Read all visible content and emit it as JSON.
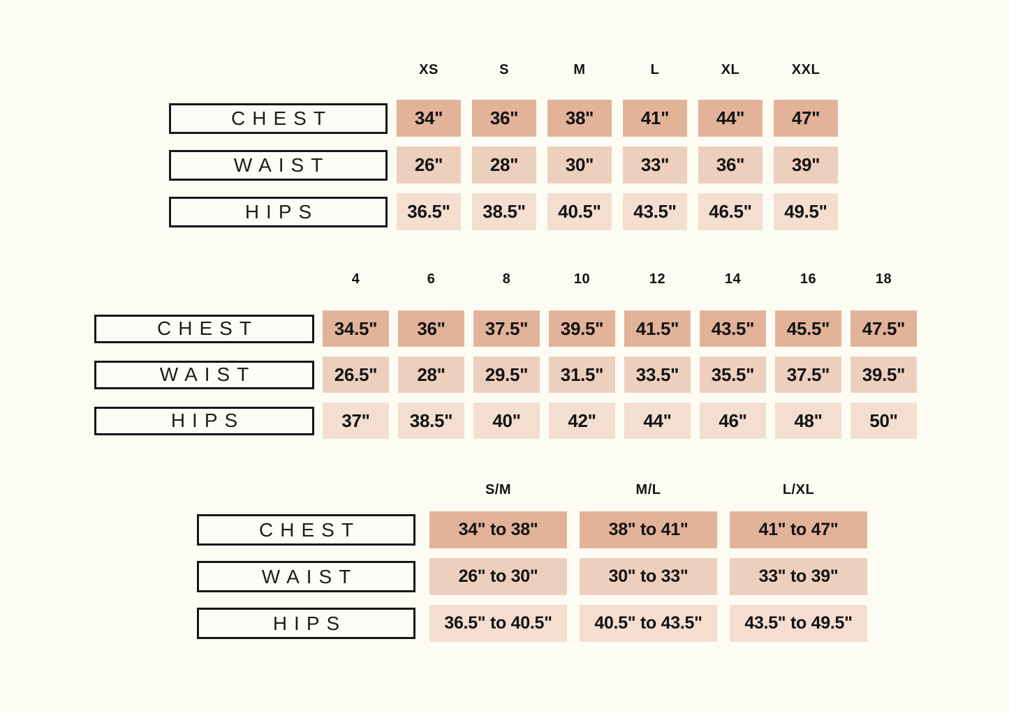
{
  "page": {
    "background": "#fcfcf3",
    "description": "Garment size chart with letter sizes, numeric sizes and combined sizes"
  },
  "colors": {
    "chest": "#e2b399",
    "waist": "#edcfbd",
    "hips": "#f3ded0",
    "label_box_bg": "#fdfdf8",
    "label_box_border": "#161616",
    "text": "#131313"
  },
  "chart_data": [
    {
      "type": "table",
      "name": "letter-sizes",
      "sizes": [
        "XS",
        "S",
        "M",
        "L",
        "XL",
        "XXL"
      ],
      "rows": [
        {
          "label": "CHEST",
          "values": [
            "34\"",
            "36\"",
            "38\"",
            "41\"",
            "44\"",
            "47\""
          ]
        },
        {
          "label": "WAIST",
          "values": [
            "26\"",
            "28\"",
            "30\"",
            "33\"",
            "36\"",
            "39\""
          ]
        },
        {
          "label": "HIPS",
          "values": [
            "36.5\"",
            "38.5\"",
            "40.5\"",
            "43.5\"",
            "46.5\"",
            "49.5\""
          ]
        }
      ]
    },
    {
      "type": "table",
      "name": "numeric-sizes",
      "sizes": [
        "4",
        "6",
        "8",
        "10",
        "12",
        "14",
        "16",
        "18"
      ],
      "rows": [
        {
          "label": "CHEST",
          "values": [
            "34.5\"",
            "36\"",
            "37.5\"",
            "39.5\"",
            "41.5\"",
            "43.5\"",
            "45.5\"",
            "47.5\""
          ]
        },
        {
          "label": "WAIST",
          "values": [
            "26.5\"",
            "28\"",
            "29.5\"",
            "31.5\"",
            "33.5\"",
            "35.5\"",
            "37.5\"",
            "39.5\""
          ]
        },
        {
          "label": "HIPS",
          "values": [
            "37\"",
            "38.5\"",
            "40\"",
            "42\"",
            "44\"",
            "46\"",
            "48\"",
            "50\""
          ]
        }
      ]
    },
    {
      "type": "table",
      "name": "combo-sizes",
      "sizes": [
        "S/M",
        "M/L",
        "L/XL"
      ],
      "rows": [
        {
          "label": "CHEST",
          "values": [
            "34\" to 38\"",
            "38\" to 41\"",
            "41\" to 47\""
          ]
        },
        {
          "label": "WAIST",
          "values": [
            "26\" to 30\"",
            "30\" to 33\"",
            "33\" to 39\""
          ]
        },
        {
          "label": "HIPS",
          "values": [
            "36.5\" to 40.5\"",
            "40.5\" to 43.5\"",
            "43.5\" to 49.5\""
          ]
        }
      ]
    }
  ]
}
